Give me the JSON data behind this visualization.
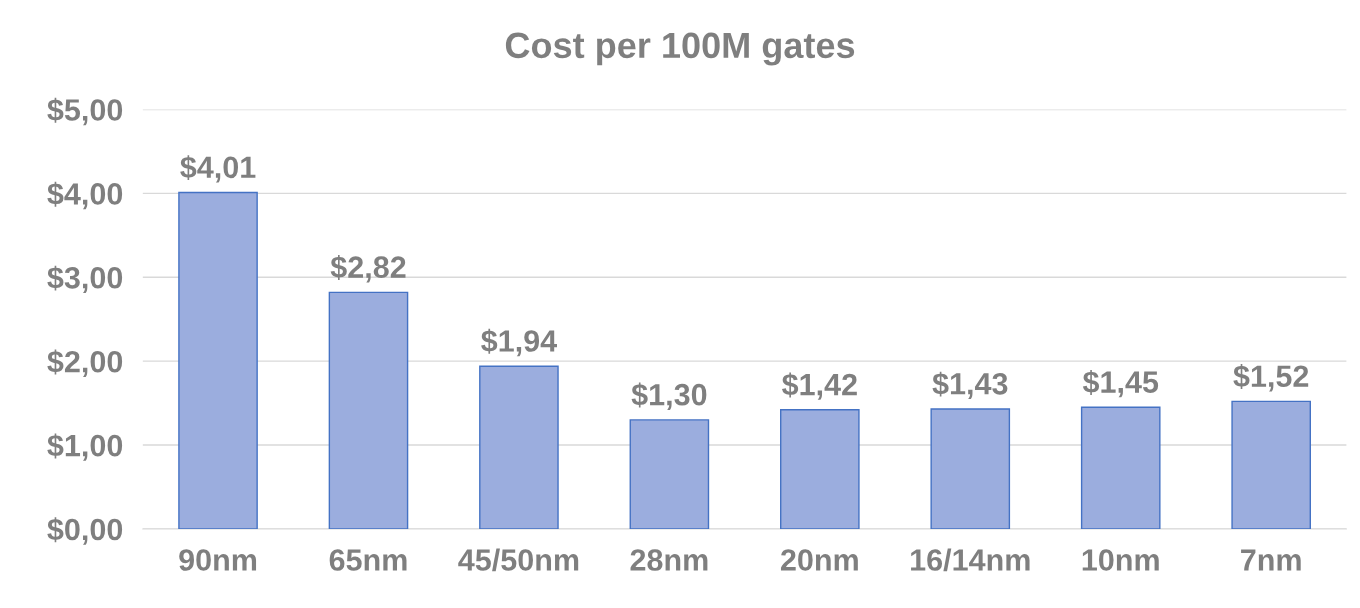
{
  "chart_data": {
    "type": "bar",
    "title": "Cost per 100M gates",
    "categories": [
      "90nm",
      "65nm",
      "45/50nm",
      "28nm",
      "20nm",
      "16/14nm",
      "10nm",
      "7nm"
    ],
    "values": [
      4.01,
      2.82,
      1.94,
      1.3,
      1.42,
      1.43,
      1.45,
      1.52
    ],
    "value_labels": [
      "$4,01",
      "$2,82",
      "$1,94",
      "$1,30",
      "$1,42",
      "$1,43",
      "$1,45",
      "$1,52"
    ],
    "color": "#9badde",
    "ylim": [
      0,
      5
    ],
    "yticks": [
      {
        "value": 0,
        "label": "$0,00"
      },
      {
        "value": 1,
        "label": "$1,00"
      },
      {
        "value": 2,
        "label": "$2,00"
      },
      {
        "value": 3,
        "label": "$3,00"
      },
      {
        "value": 4,
        "label": "$4,00"
      },
      {
        "value": 5,
        "label": "$5,00"
      }
    ],
    "grid": "y",
    "legend": false
  }
}
